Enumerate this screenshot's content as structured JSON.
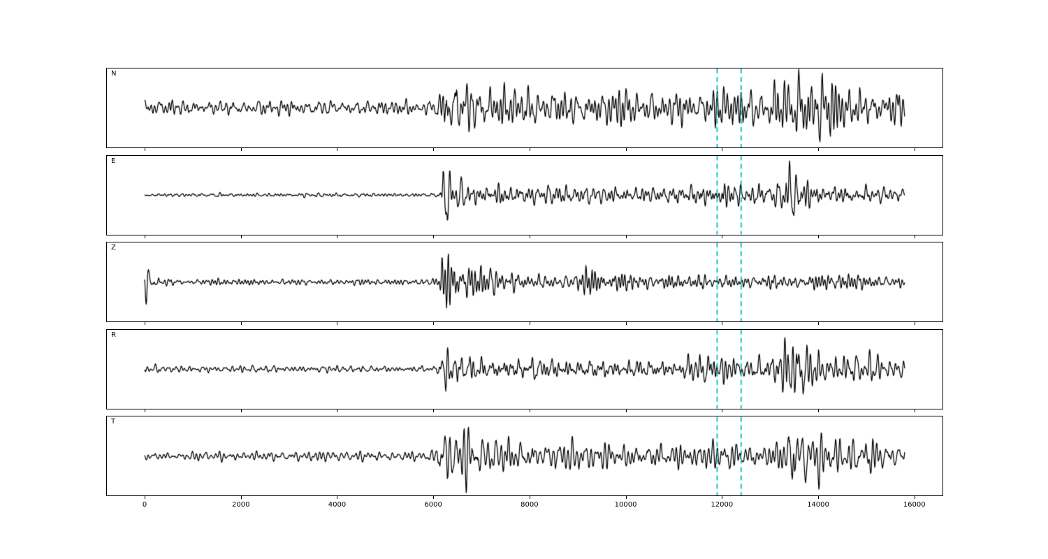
{
  "figure": {
    "background": "#ffffff",
    "trace_color": "#000000",
    "marker_color": "#00bfbf"
  },
  "chart_data": {
    "type": "line",
    "title": "",
    "xlabel": "",
    "ylabel": "",
    "description": "Five-channel seismogram waveform plot (components N, E, Z, R, T) sharing one x-axis, with two dashed cyan vertical marker lines",
    "xlim": [
      -800,
      16600
    ],
    "xticks": [
      0,
      2000,
      4000,
      6000,
      8000,
      10000,
      12000,
      14000,
      16000
    ],
    "trace_x_range": [
      0,
      15800
    ],
    "marker_lines_x": [
      11900,
      12400
    ],
    "marker_style": "dashed",
    "grid": false,
    "legend": false,
    "channels": [
      {
        "label": "N",
        "seed": 7,
        "envelope": [
          [
            0,
            0.23
          ],
          [
            3000,
            0.24
          ],
          [
            5700,
            0.22
          ],
          [
            6050,
            0.26
          ],
          [
            6200,
            0.95
          ],
          [
            6600,
            0.9
          ],
          [
            7000,
            0.7
          ],
          [
            7600,
            0.55
          ],
          [
            8300,
            0.6
          ],
          [
            9500,
            0.5
          ],
          [
            10500,
            0.52
          ],
          [
            11300,
            0.48
          ],
          [
            11900,
            0.55
          ],
          [
            12400,
            0.58
          ],
          [
            13000,
            0.6
          ],
          [
            13350,
            1.0
          ],
          [
            13800,
            0.95
          ],
          [
            14300,
            0.8
          ],
          [
            14700,
            0.55
          ],
          [
            15300,
            0.5
          ],
          [
            15800,
            0.45
          ]
        ]
      },
      {
        "label": "E",
        "seed": 13,
        "envelope": [
          [
            0,
            0.05
          ],
          [
            5800,
            0.06
          ],
          [
            6100,
            0.08
          ],
          [
            6250,
            0.9
          ],
          [
            6400,
            0.45
          ],
          [
            6700,
            0.35
          ],
          [
            7300,
            0.3
          ],
          [
            8200,
            0.32
          ],
          [
            9200,
            0.28
          ],
          [
            10300,
            0.24
          ],
          [
            11300,
            0.25
          ],
          [
            11850,
            0.45
          ],
          [
            12100,
            0.4
          ],
          [
            12500,
            0.28
          ],
          [
            13200,
            0.35
          ],
          [
            13420,
            1.0
          ],
          [
            13650,
            0.75
          ],
          [
            13900,
            0.35
          ],
          [
            14500,
            0.28
          ],
          [
            15200,
            0.24
          ],
          [
            15800,
            0.2
          ]
        ]
      },
      {
        "label": "Z",
        "seed": 21,
        "envelope": [
          [
            0,
            0.6
          ],
          [
            120,
            0.32
          ],
          [
            350,
            0.14
          ],
          [
            900,
            0.09
          ],
          [
            5800,
            0.09
          ],
          [
            6100,
            0.12
          ],
          [
            6250,
            1.0
          ],
          [
            6450,
            0.65
          ],
          [
            6700,
            0.45
          ],
          [
            7100,
            0.5
          ],
          [
            7400,
            0.35
          ],
          [
            8000,
            0.28
          ],
          [
            8900,
            0.25
          ],
          [
            9250,
            0.45
          ],
          [
            9450,
            0.25
          ],
          [
            10500,
            0.22
          ],
          [
            11500,
            0.22
          ],
          [
            12500,
            0.2
          ],
          [
            13500,
            0.22
          ],
          [
            14500,
            0.22
          ],
          [
            15800,
            0.2
          ]
        ]
      },
      {
        "label": "R",
        "seed": 33,
        "envelope": [
          [
            0,
            0.09
          ],
          [
            5800,
            0.09
          ],
          [
            6100,
            0.12
          ],
          [
            6250,
            0.8
          ],
          [
            6450,
            0.55
          ],
          [
            6900,
            0.4
          ],
          [
            7800,
            0.38
          ],
          [
            8800,
            0.35
          ],
          [
            9800,
            0.32
          ],
          [
            11000,
            0.3
          ],
          [
            11800,
            0.6
          ],
          [
            12150,
            0.5
          ],
          [
            12600,
            0.32
          ],
          [
            13150,
            0.5
          ],
          [
            13400,
            1.0
          ],
          [
            13700,
            0.85
          ],
          [
            14100,
            0.45
          ],
          [
            14800,
            0.4
          ],
          [
            15400,
            0.35
          ],
          [
            15800,
            0.3
          ]
        ]
      },
      {
        "label": "T",
        "seed": 42,
        "envelope": [
          [
            0,
            0.13
          ],
          [
            2500,
            0.15
          ],
          [
            5700,
            0.14
          ],
          [
            6050,
            0.2
          ],
          [
            6250,
            0.85
          ],
          [
            6700,
            0.75
          ],
          [
            7200,
            0.55
          ],
          [
            8200,
            0.5
          ],
          [
            9300,
            0.42
          ],
          [
            10300,
            0.4
          ],
          [
            11300,
            0.38
          ],
          [
            12000,
            0.45
          ],
          [
            12700,
            0.4
          ],
          [
            13300,
            0.55
          ],
          [
            13500,
            1.0
          ],
          [
            13800,
            0.8
          ],
          [
            14300,
            0.6
          ],
          [
            14900,
            0.5
          ],
          [
            15500,
            0.42
          ],
          [
            15800,
            0.38
          ]
        ]
      }
    ]
  }
}
